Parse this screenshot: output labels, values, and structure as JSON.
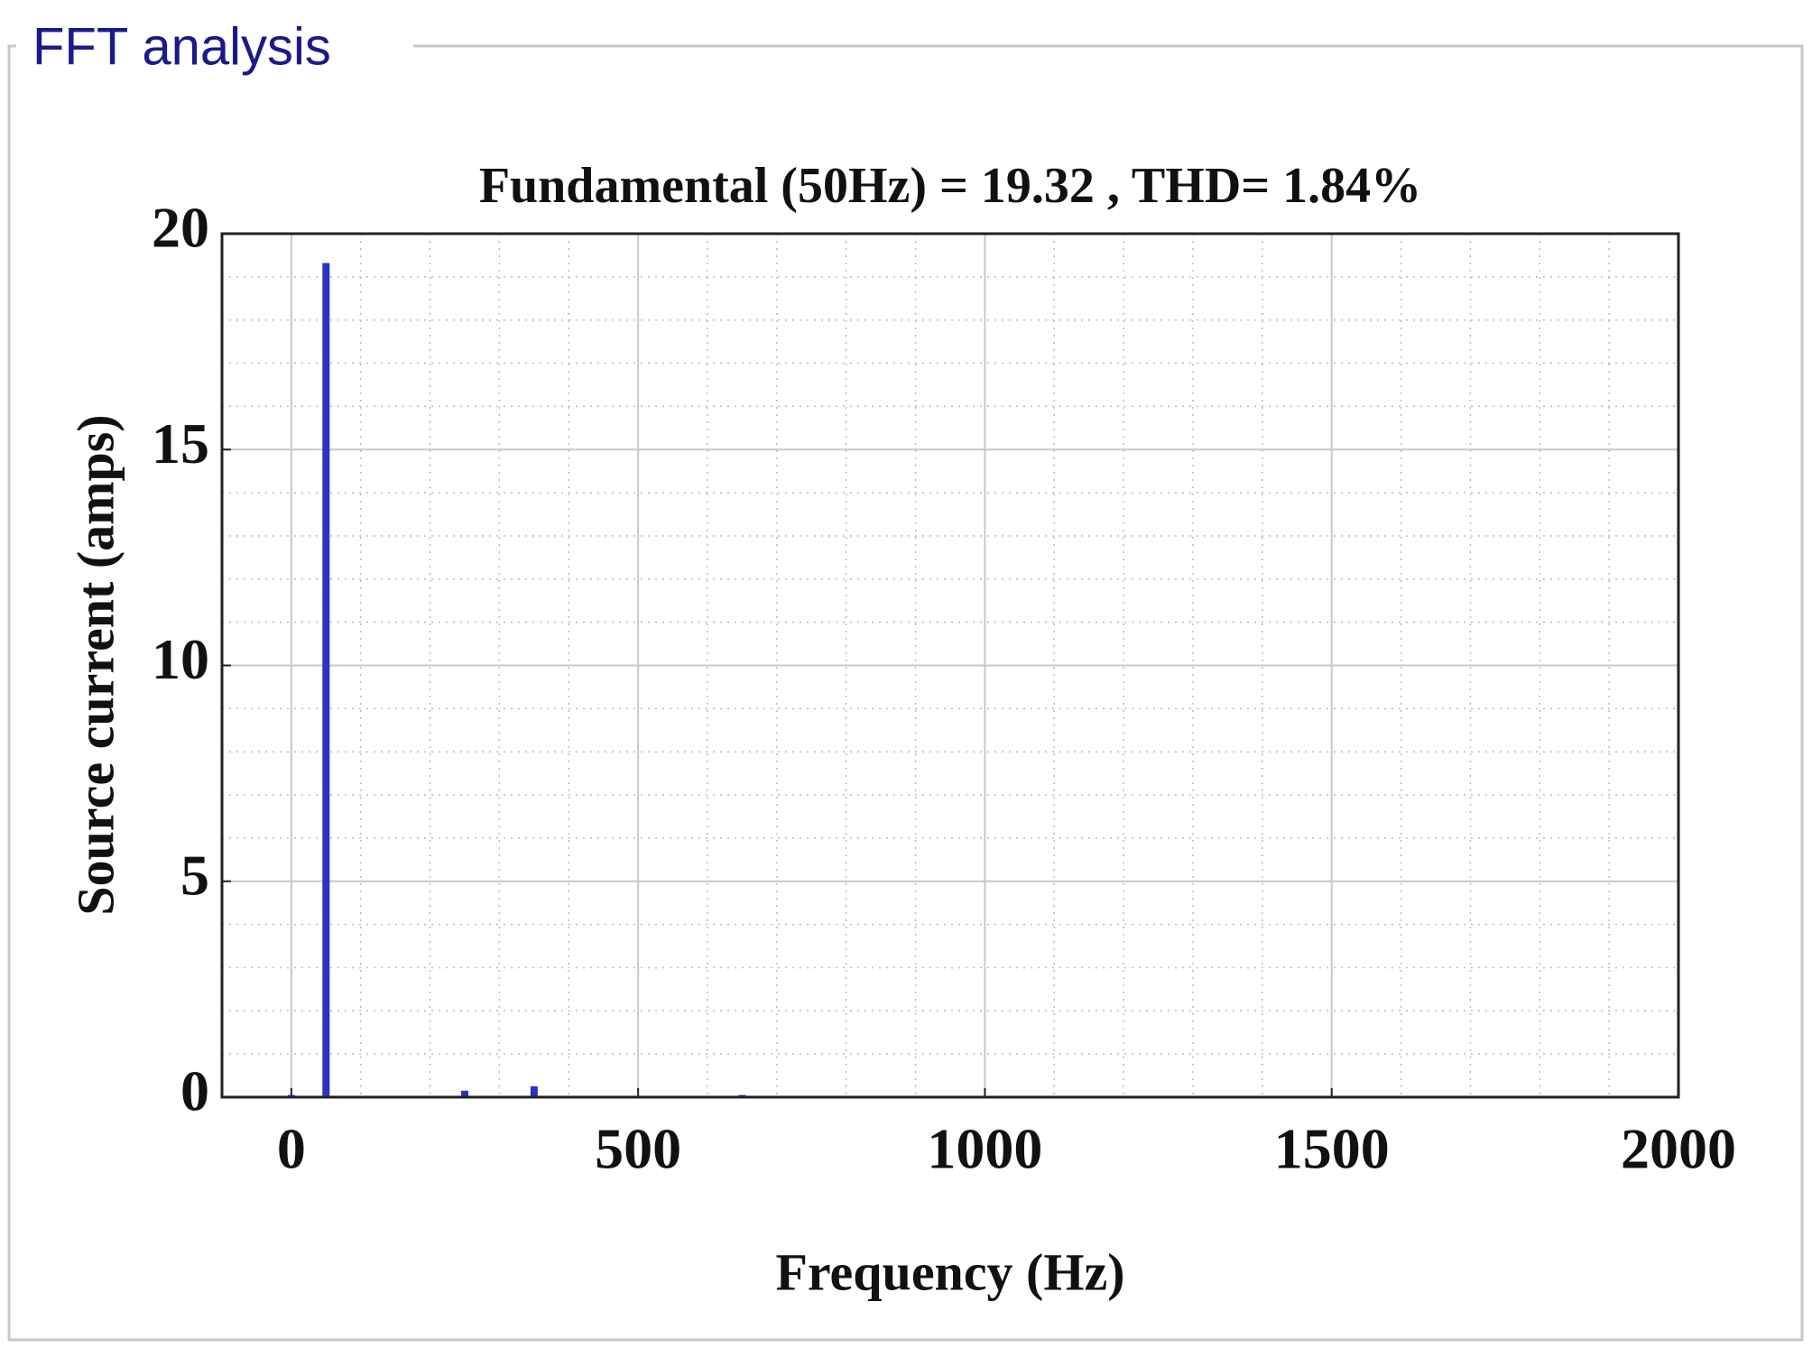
{
  "panel": {
    "title": "FFT analysis"
  },
  "chart_data": {
    "type": "bar",
    "title": "Fundamental (50Hz) = 19.32 , THD= 1.84%",
    "x_label": "Frequency (Hz)",
    "y_label": "Source current (amps)",
    "x": [
      0,
      50,
      250,
      350,
      650
    ],
    "values": [
      0.05,
      19.32,
      0.15,
      0.25,
      0.05
    ],
    "color": "#2a33c4",
    "xlim": [
      -100,
      2000
    ],
    "xticks": [
      0,
      500,
      1000,
      1500,
      2000
    ],
    "ylim": [
      0,
      20
    ],
    "yticks": [
      0,
      5,
      10,
      15,
      20
    ],
    "grid": true,
    "minor_grid": true
  }
}
